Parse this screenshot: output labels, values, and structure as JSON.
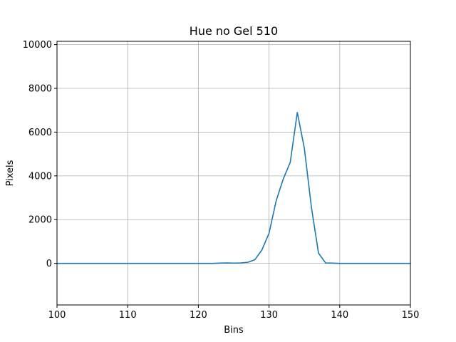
{
  "chart_data": {
    "type": "line",
    "title": "Hue no Gel 510",
    "xlabel": "Bins",
    "ylabel": "Pixels",
    "xlim": [
      100,
      150
    ],
    "ylim": [
      -1900,
      10150
    ],
    "grid": true,
    "line_color": "#1f77b4",
    "x_ticks": [
      100,
      110,
      120,
      130,
      140,
      150
    ],
    "y_ticks": [
      0,
      2000,
      4000,
      6000,
      8000,
      10000
    ],
    "series": [
      {
        "x": [
          100,
          101,
          102,
          103,
          104,
          105,
          106,
          107,
          108,
          109,
          110,
          111,
          112,
          113,
          114,
          115,
          116,
          117,
          118,
          119,
          120,
          121,
          122,
          123,
          124,
          125,
          126,
          127,
          128,
          129,
          130,
          131,
          132,
          133,
          134,
          135,
          136,
          137,
          138,
          139,
          140,
          141,
          142,
          143,
          144,
          145,
          146,
          147,
          148,
          149,
          150
        ],
        "values": [
          0,
          0,
          0,
          0,
          0,
          0,
          0,
          0,
          0,
          0,
          0,
          0,
          0,
          0,
          0,
          0,
          0,
          0,
          0,
          0,
          0,
          0,
          0,
          10,
          20,
          10,
          20,
          50,
          170,
          620,
          1380,
          2850,
          3850,
          4620,
          6900,
          5250,
          2550,
          470,
          20,
          10,
          0,
          0,
          0,
          0,
          0,
          0,
          0,
          0,
          0,
          0,
          0
        ]
      }
    ]
  }
}
